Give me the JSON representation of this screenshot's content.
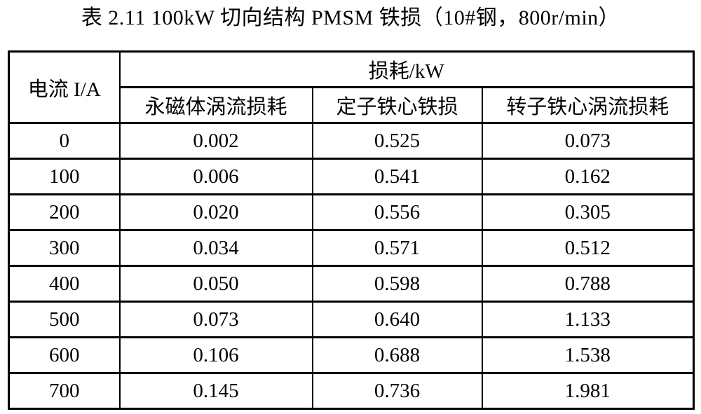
{
  "title": "表 2.11 100kW 切向结构 PMSM 铁损（10#钢，800r/min）",
  "table": {
    "current_header": "电流 I/A",
    "loss_group_header": "损耗/kW",
    "sub_headers": [
      "永磁体涡流损耗",
      "定子铁心铁损",
      "转子铁心涡流损耗"
    ],
    "rows": [
      [
        "0",
        "0.002",
        "0.525",
        "0.073"
      ],
      [
        "100",
        "0.006",
        "0.541",
        "0.162"
      ],
      [
        "200",
        "0.020",
        "0.556",
        "0.305"
      ],
      [
        "300",
        "0.034",
        "0.571",
        "0.512"
      ],
      [
        "400",
        "0.050",
        "0.598",
        "0.788"
      ],
      [
        "500",
        "0.073",
        "0.640",
        "1.133"
      ],
      [
        "600",
        "0.106",
        "0.688",
        "1.538"
      ],
      [
        "700",
        "0.145",
        "0.736",
        "1.981"
      ]
    ]
  }
}
